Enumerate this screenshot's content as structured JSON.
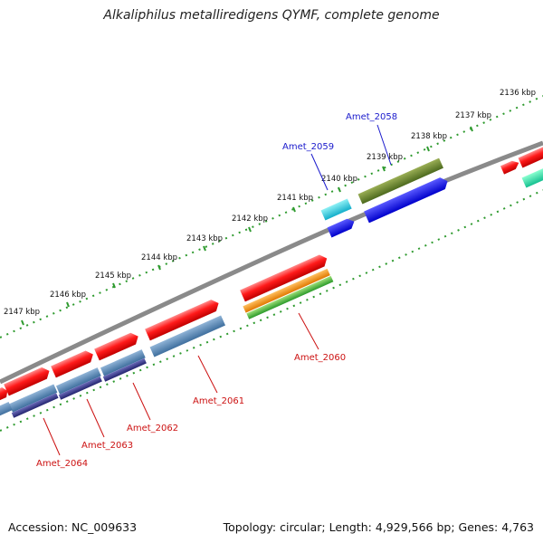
{
  "title": "Alkaliphilus metalliredigens QYMF, complete genome",
  "footer": {
    "accession": "Accession: NC_009633",
    "summary": "Topology: circular; Length: 4,929,566 bp; Genes: 4,763"
  },
  "colors": {
    "cds_forward": "#ee1111",
    "backbone": "#8a8a8a",
    "ticks": "#2e9a2e",
    "label_blue": "#1a1acc",
    "label_red": "#cc1111"
  },
  "ticks": [
    {
      "label": "2136 kbp"
    },
    {
      "label": "2137 kbp"
    },
    {
      "label": "2138 kbp"
    },
    {
      "label": "2139 kbp"
    },
    {
      "label": "2140 kbp"
    },
    {
      "label": "2141 kbp"
    },
    {
      "label": "2142 kbp"
    },
    {
      "label": "2143 kbp"
    },
    {
      "label": "2144 kbp"
    },
    {
      "label": "2145 kbp"
    },
    {
      "label": "2146 kbp"
    },
    {
      "label": "2147 kbp"
    }
  ],
  "gene_labels": [
    {
      "name": "Amet_2058",
      "color": "#1a1acc"
    },
    {
      "name": "Amet_2059",
      "color": "#1a1acc"
    },
    {
      "name": "Amet_2060",
      "color": "#cc1111"
    },
    {
      "name": "Amet_2061",
      "color": "#cc1111"
    },
    {
      "name": "Amet_2062",
      "color": "#cc1111"
    },
    {
      "name": "Amet_2063",
      "color": "#cc1111"
    },
    {
      "name": "Amet_2064",
      "color": "#cc1111"
    }
  ]
}
